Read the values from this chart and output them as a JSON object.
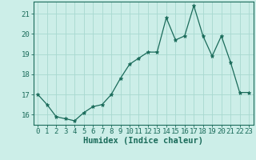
{
  "x": [
    0,
    1,
    2,
    3,
    4,
    5,
    6,
    7,
    8,
    9,
    10,
    11,
    12,
    13,
    14,
    15,
    16,
    17,
    18,
    19,
    20,
    21,
    22,
    23
  ],
  "y": [
    17.0,
    16.5,
    15.9,
    15.8,
    15.7,
    16.1,
    16.4,
    16.5,
    17.0,
    17.8,
    18.5,
    18.8,
    19.1,
    19.1,
    20.8,
    19.7,
    19.9,
    21.4,
    19.9,
    18.9,
    19.9,
    18.6,
    17.1,
    17.1
  ],
  "line_color": "#1a6b5a",
  "marker": "*",
  "markersize": 3.5,
  "linewidth": 0.9,
  "bg_color": "#cceee8",
  "grid_color": "#a8d8d0",
  "xlabel": "Humidex (Indice chaleur)",
  "ylim": [
    15.5,
    21.6
  ],
  "xlim": [
    -0.5,
    23.5
  ],
  "yticks": [
    16,
    17,
    18,
    19,
    20,
    21
  ],
  "xticks": [
    0,
    1,
    2,
    3,
    4,
    5,
    6,
    7,
    8,
    9,
    10,
    11,
    12,
    13,
    14,
    15,
    16,
    17,
    18,
    19,
    20,
    21,
    22,
    23
  ],
  "xlabel_fontsize": 7.5,
  "tick_fontsize": 6.5
}
